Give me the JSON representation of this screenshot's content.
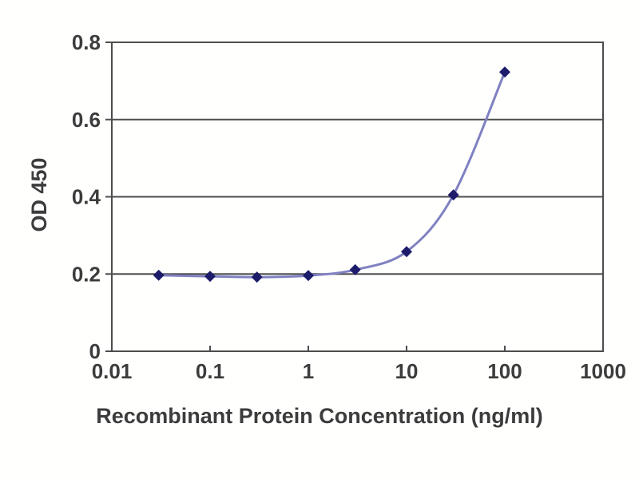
{
  "chart_data": {
    "type": "line",
    "title": "",
    "xlabel": "Recombinant Protein Concentration (ng/ml)",
    "ylabel": "OD 450",
    "xscale": "log",
    "xlim": [
      0.01,
      1000
    ],
    "ylim": [
      0,
      0.8
    ],
    "x": [
      0.03,
      0.1,
      0.3,
      1,
      3,
      10,
      30,
      100
    ],
    "series": [
      {
        "name": "OD 450",
        "values": [
          0.197,
          0.194,
          0.192,
          0.196,
          0.211,
          0.258,
          0.405,
          0.723
        ]
      }
    ],
    "xticks": [
      0.01,
      0.1,
      1,
      10,
      100,
      1000
    ],
    "xtick_labels": [
      "0.01",
      "0.1",
      "1",
      "10",
      "100",
      "1000"
    ],
    "yticks": [
      0,
      0.2,
      0.4,
      0.6,
      0.8
    ],
    "ytick_labels": [
      "0",
      "0.2",
      "0.4",
      "0.6",
      "0.8"
    ],
    "grid": "horizontal",
    "legend": "none",
    "marker_shape": "diamond",
    "colors": {
      "line": "#8081c1",
      "marker": "#1c1c6b",
      "grid": "#4d4d4d",
      "text": "#3c3c3c",
      "background": "#ffffff"
    }
  }
}
